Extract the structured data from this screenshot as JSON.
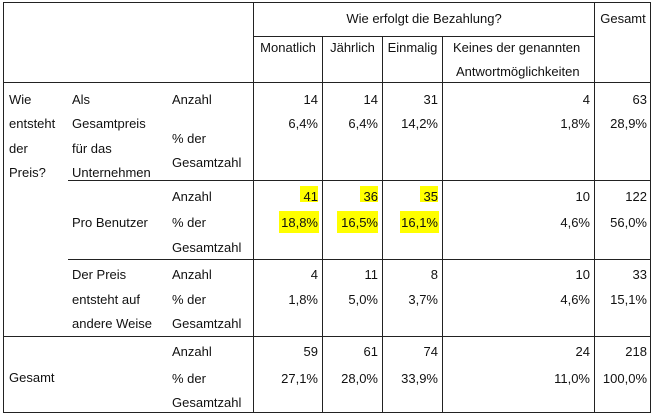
{
  "header": {
    "group_title": "Wie erfolgt die Bezahlung?",
    "total_title": "Gesamt",
    "cols": [
      "Monatlich",
      "Jährlich",
      "Einmalig",
      "Keines der genannten",
      "Antwortmöglichkeiten"
    ]
  },
  "row_var": [
    "Wie",
    "entsteht",
    "der",
    "Preis?"
  ],
  "groups": [
    {
      "label": [
        "Als",
        "Gesamtpreis",
        "für das",
        "Unternehmen"
      ],
      "stat1": "Anzahl",
      "stat2": [
        "% der",
        "Gesamtzahl"
      ],
      "counts": [
        "14",
        "14",
        "31",
        "4",
        "63"
      ],
      "pcts": [
        "6,4%",
        "6,4%",
        "14,2%",
        "1,8%",
        "28,9%"
      ]
    },
    {
      "label": [
        "Pro Benutzer"
      ],
      "stat1": "Anzahl",
      "stat2": [
        "% der",
        "Gesamtzahl"
      ],
      "counts": [
        "41",
        "36",
        "35",
        "10",
        "122"
      ],
      "pcts": [
        "18,8%",
        "16,5%",
        "16,1%",
        "4,6%",
        "56,0%"
      ]
    },
    {
      "label": [
        "Der Preis",
        "entsteht auf",
        "andere Weise"
      ],
      "stat1": "Anzahl",
      "stat2": [
        "% der",
        "Gesamtzahl"
      ],
      "counts": [
        "4",
        "11",
        "8",
        "10",
        "33"
      ],
      "pcts": [
        "1,8%",
        "5,0%",
        "3,7%",
        "4,6%",
        "15,1%"
      ]
    },
    {
      "label": [
        "Gesamt"
      ],
      "stat1": "Anzahl",
      "stat2": [
        "% der",
        "Gesamtzahl"
      ],
      "counts": [
        "59",
        "61",
        "74",
        "24",
        "218"
      ],
      "pcts": [
        "27,1%",
        "28,0%",
        "33,9%",
        "11,0%",
        "100,0%"
      ]
    }
  ],
  "colors": {
    "highlight": "#ffff00",
    "border": "#222222"
  }
}
